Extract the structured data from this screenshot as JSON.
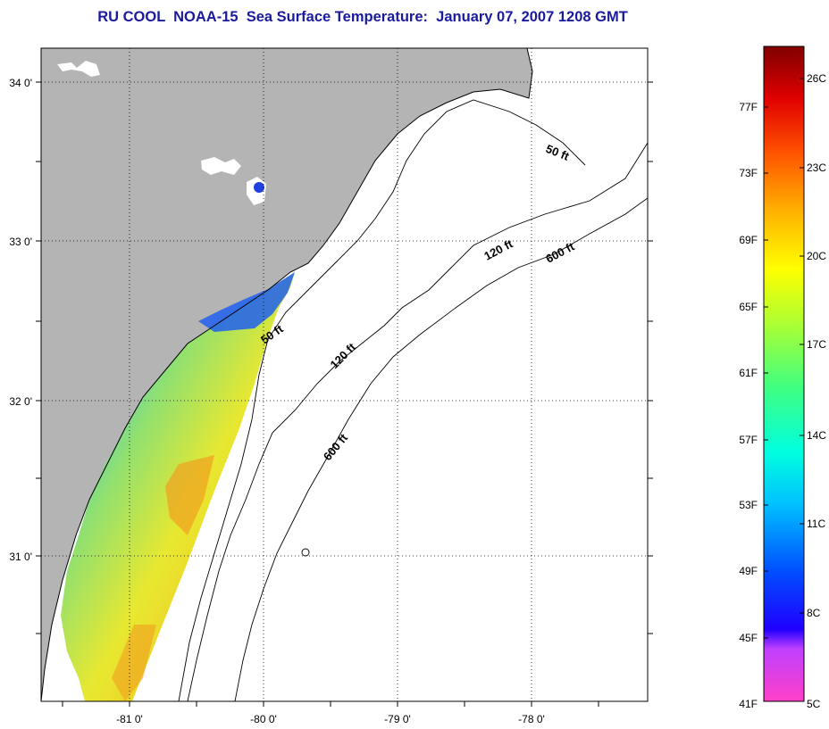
{
  "title": "RU COOL  NOAA-15  Sea Surface Temperature:  January 07, 2007 1208 GMT",
  "map": {
    "lat_labels": [
      "34 0'",
      "33 0'",
      "32 0'",
      "31 0'"
    ],
    "lon_labels": [
      "-81 0'",
      "-80 0'",
      "-79 0'",
      "-78 0'"
    ],
    "contour_labels": [
      "50 ft",
      "120 ft",
      "600 ft",
      "50 ft",
      "120 ft",
      "600 ft"
    ],
    "colors": {
      "land": "#b4b4b4",
      "ocean": "#ffffff",
      "contour": "#000000"
    }
  },
  "colorbar": {
    "f_labels": [
      "77F",
      "73F",
      "69F",
      "65F",
      "61F",
      "57F",
      "53F",
      "49F",
      "45F",
      "41F"
    ],
    "c_labels": [
      "26C",
      "23C",
      "20C",
      "17C",
      "14C",
      "11C",
      "8C",
      "5C"
    ]
  }
}
